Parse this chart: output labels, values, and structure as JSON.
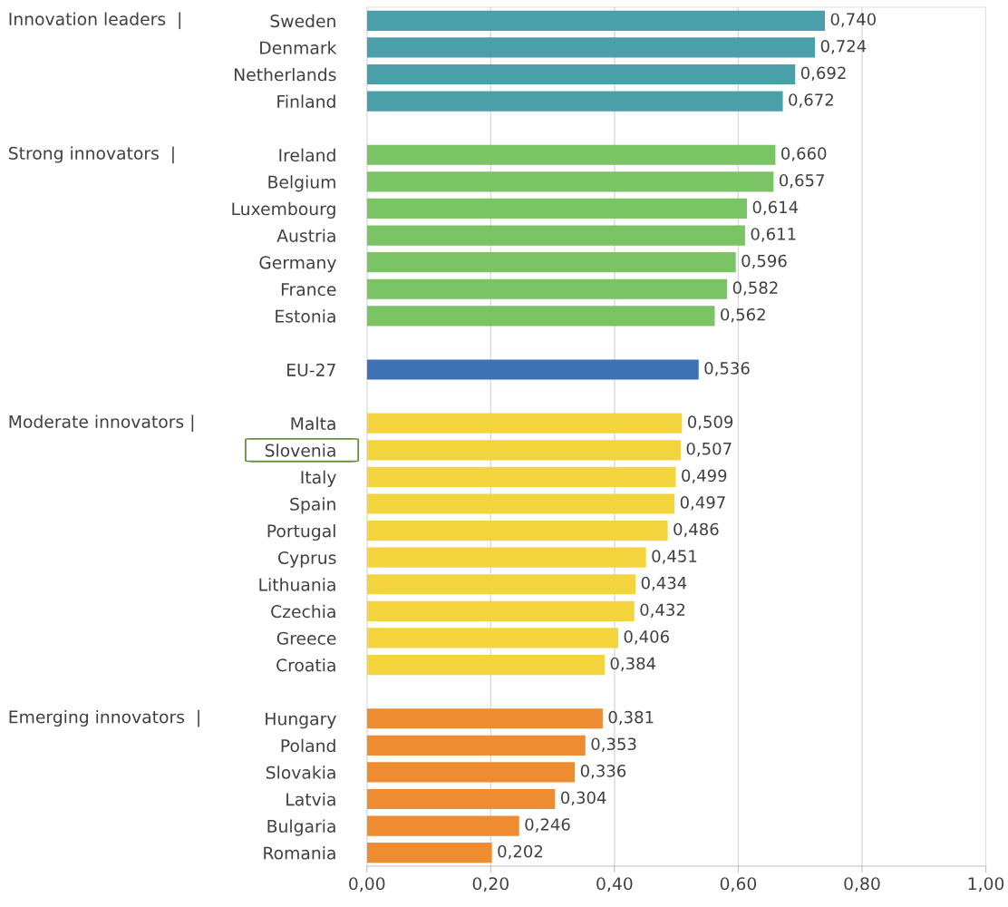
{
  "chart_data": {
    "type": "bar",
    "orientation": "horizontal",
    "categories": [
      "Sweden",
      "Denmark",
      "Netherlands",
      "Finland",
      null,
      "Ireland",
      "Belgium",
      "Luxembourg",
      "Austria",
      "Germany",
      "France",
      "Estonia",
      null,
      "EU-27",
      null,
      "Malta",
      "Slovenia",
      "Italy",
      "Spain",
      "Portugal",
      "Cyprus",
      "Lithuania",
      "Czechia",
      "Greece",
      "Croatia",
      null,
      "Hungary",
      "Poland",
      "Slovakia",
      "Latvia",
      "Bulgaria",
      "Romania"
    ],
    "values": [
      0.74,
      0.724,
      0.692,
      0.672,
      null,
      0.66,
      0.657,
      0.614,
      0.611,
      0.596,
      0.582,
      0.562,
      null,
      0.536,
      null,
      0.509,
      0.507,
      0.499,
      0.497,
      0.486,
      0.451,
      0.434,
      0.432,
      0.406,
      0.384,
      null,
      0.381,
      0.353,
      0.336,
      0.304,
      0.246,
      0.202
    ],
    "value_labels": [
      "0,740",
      "0,724",
      "0,692",
      "0,672",
      null,
      "0,660",
      "0,657",
      "0,614",
      "0,611",
      "0,596",
      "0,582",
      "0,562",
      null,
      "0,536",
      null,
      "0,509",
      "0,507",
      "0,499",
      "0,497",
      "0,486",
      "0,451",
      "0,434",
      "0,432",
      "0,406",
      "0,384",
      null,
      "0,381",
      "0,353",
      "0,336",
      "0,304",
      "0,246",
      "0,202"
    ],
    "colors": [
      "#4a9fa8",
      "#4a9fa8",
      "#4a9fa8",
      "#4a9fa8",
      null,
      "#7bc466",
      "#7bc466",
      "#7bc466",
      "#7bc466",
      "#7bc466",
      "#7bc466",
      "#7bc466",
      null,
      "#3f71b5",
      null,
      "#f3d43c",
      "#f3d43c",
      "#f3d43c",
      "#f3d43c",
      "#f3d43c",
      "#f3d43c",
      "#f3d43c",
      "#f3d43c",
      "#f3d43c",
      "#f3d43c",
      null,
      "#ee8c32",
      "#ee8c32",
      "#ee8c32",
      "#ee8c32",
      "#ee8c32",
      "#ee8c32"
    ],
    "xlim": [
      0,
      1
    ],
    "xticks": [
      {
        "value": 0,
        "label": "0,00"
      },
      {
        "value": 0.2,
        "label": "0,20"
      },
      {
        "value": 0.4,
        "label": "0,40"
      },
      {
        "value": 0.6,
        "label": "0,60"
      },
      {
        "value": 0.8,
        "label": "0,80"
      },
      {
        "value": 1,
        "label": "1,00"
      }
    ],
    "grid": "x",
    "annotations": [
      "Innovation leaders  |",
      "Strong innovators  |",
      "Moderate innovators |",
      "Emerging innovators  |"
    ]
  }
}
